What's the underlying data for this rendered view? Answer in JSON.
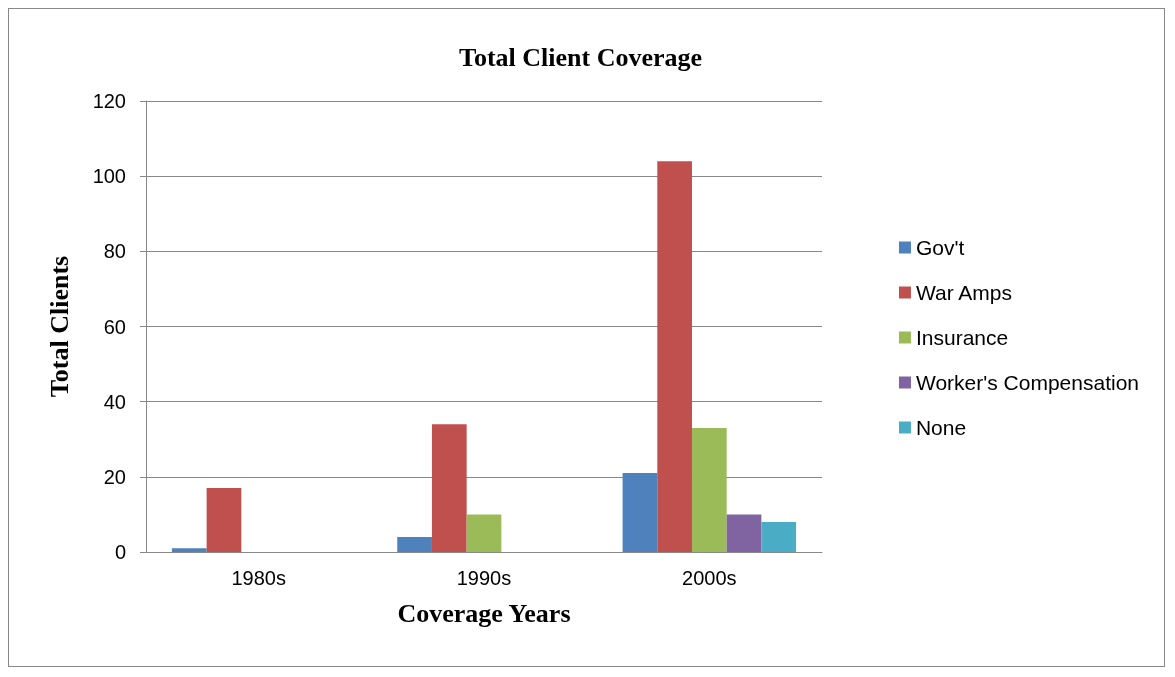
{
  "chart_data": {
    "type": "bar",
    "title": "Total Client Coverage",
    "xlabel": "Coverage Years",
    "ylabel": "Total Clients",
    "categories": [
      "1980s",
      "1990s",
      "2000s"
    ],
    "series": [
      {
        "name": "Gov't",
        "color": "#4f81bd",
        "values": [
          1,
          4,
          21
        ]
      },
      {
        "name": "War Amps",
        "color": "#c0504d",
        "values": [
          17,
          34,
          104
        ]
      },
      {
        "name": "Insurance",
        "color": "#9bbb59",
        "values": [
          0,
          10,
          33
        ]
      },
      {
        "name": "Worker's Compensation",
        "color": "#8064a2",
        "values": [
          0,
          0,
          10
        ]
      },
      {
        "name": "None",
        "color": "#4bacc6",
        "values": [
          0,
          0,
          8
        ]
      }
    ],
    "ylim": [
      0,
      120
    ],
    "yticks": [
      0,
      20,
      40,
      60,
      80,
      100,
      120
    ],
    "grid": "y",
    "legend": "right"
  }
}
